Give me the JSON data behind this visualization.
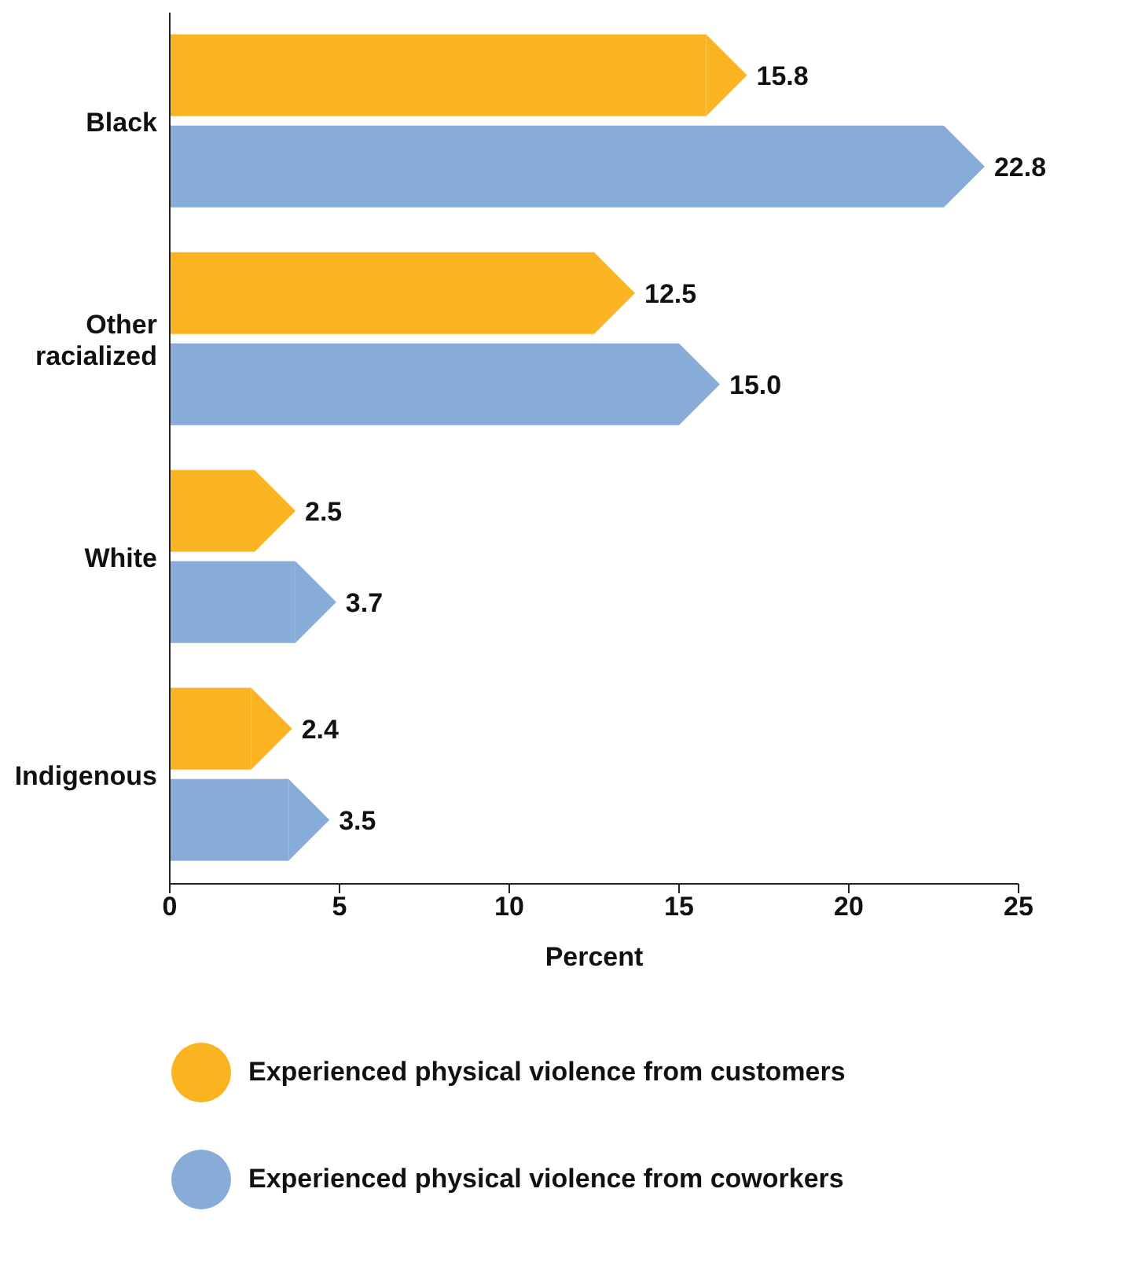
{
  "chart_data": {
    "type": "bar",
    "orientation": "horizontal",
    "xlabel": "Percent",
    "categories": [
      "Black",
      "Other racialized",
      "White",
      "Indigenous"
    ],
    "series": [
      {
        "name": "Experienced physical violence from customers",
        "color": "#fbb421",
        "values": [
          15.8,
          12.5,
          2.5,
          2.4
        ],
        "value_labels": [
          "15.8",
          "12.5",
          "2.5",
          "2.4"
        ]
      },
      {
        "name": "Experienced physical violence from coworkers",
        "color": "#87acd8",
        "values": [
          22.8,
          15.0,
          3.7,
          3.5
        ],
        "value_labels": [
          "22.8",
          "15.0",
          "3.7",
          "3.5"
        ]
      }
    ],
    "xlim": [
      0,
      25
    ],
    "xticks": [
      0,
      5,
      10,
      15,
      20,
      25
    ],
    "grid": false,
    "legend": "bottom"
  }
}
